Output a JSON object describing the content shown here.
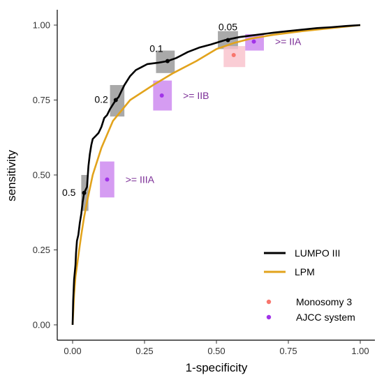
{
  "chart_data": {
    "type": "line",
    "xlabel": "1-specificity",
    "ylabel": "sensitivity",
    "xlim": [
      0,
      1
    ],
    "ylim": [
      0,
      1
    ],
    "x_ticks": [
      "0.00",
      "0.25",
      "0.50",
      "0.75",
      "1.00"
    ],
    "y_ticks": [
      "0.00",
      "0.25",
      "0.50",
      "0.75",
      "1.00"
    ],
    "grid": false,
    "legend_position": "bottom-right",
    "series": [
      {
        "name": "LUMPO III",
        "color": "#000000",
        "points": [
          [
            0,
            0
          ],
          [
            0.002,
            0.08
          ],
          [
            0.005,
            0.15
          ],
          [
            0.01,
            0.2
          ],
          [
            0.012,
            0.24
          ],
          [
            0.015,
            0.28
          ],
          [
            0.02,
            0.3
          ],
          [
            0.025,
            0.34
          ],
          [
            0.03,
            0.37
          ],
          [
            0.035,
            0.41
          ],
          [
            0.04,
            0.44
          ],
          [
            0.05,
            0.46
          ],
          [
            0.055,
            0.53
          ],
          [
            0.06,
            0.57
          ],
          [
            0.065,
            0.6
          ],
          [
            0.07,
            0.62
          ],
          [
            0.08,
            0.63
          ],
          [
            0.09,
            0.64
          ],
          [
            0.1,
            0.66
          ],
          [
            0.11,
            0.69
          ],
          [
            0.12,
            0.7
          ],
          [
            0.13,
            0.72
          ],
          [
            0.15,
            0.75
          ],
          [
            0.16,
            0.76
          ],
          [
            0.17,
            0.78
          ],
          [
            0.18,
            0.8
          ],
          [
            0.2,
            0.83
          ],
          [
            0.22,
            0.85
          ],
          [
            0.24,
            0.86
          ],
          [
            0.26,
            0.87
          ],
          [
            0.3,
            0.875
          ],
          [
            0.33,
            0.88
          ],
          [
            0.36,
            0.89
          ],
          [
            0.38,
            0.9
          ],
          [
            0.4,
            0.91
          ],
          [
            0.44,
            0.925
          ],
          [
            0.48,
            0.935
          ],
          [
            0.53,
            0.95
          ],
          [
            0.58,
            0.96
          ],
          [
            0.62,
            0.965
          ],
          [
            0.66,
            0.97
          ],
          [
            0.7,
            0.975
          ],
          [
            0.75,
            0.98
          ],
          [
            0.8,
            0.985
          ],
          [
            0.85,
            0.99
          ],
          [
            0.9,
            0.993
          ],
          [
            0.95,
            0.997
          ],
          [
            1.0,
            1.0
          ]
        ]
      },
      {
        "name": "LPM",
        "color": "#E2A31C",
        "points": [
          [
            0,
            0
          ],
          [
            0.005,
            0.1
          ],
          [
            0.01,
            0.16
          ],
          [
            0.02,
            0.23
          ],
          [
            0.03,
            0.3
          ],
          [
            0.04,
            0.36
          ],
          [
            0.05,
            0.41
          ],
          [
            0.07,
            0.5
          ],
          [
            0.1,
            0.59
          ],
          [
            0.14,
            0.68
          ],
          [
            0.2,
            0.75
          ],
          [
            0.28,
            0.8
          ],
          [
            0.35,
            0.84
          ],
          [
            0.43,
            0.88
          ],
          [
            0.5,
            0.92
          ],
          [
            0.56,
            0.94
          ],
          [
            0.62,
            0.955
          ],
          [
            0.7,
            0.968
          ],
          [
            0.8,
            0.98
          ],
          [
            0.9,
            0.99
          ],
          [
            1.0,
            1.0
          ]
        ]
      }
    ],
    "thresholds": [
      {
        "label": "0.5",
        "x": 0.04,
        "y": 0.44,
        "x_err": [
          0.03,
          0.055
        ],
        "y_err": [
          0.38,
          0.5
        ]
      },
      {
        "label": "0.2",
        "x": 0.15,
        "y": 0.75,
        "x_err": [
          0.13,
          0.18
        ],
        "y_err": [
          0.695,
          0.8
        ]
      },
      {
        "label": "0.1",
        "x": 0.33,
        "y": 0.88,
        "x_err": [
          0.29,
          0.355
        ],
        "y_err": [
          0.84,
          0.915
        ]
      },
      {
        "label": "0.05",
        "x": 0.54,
        "y": 0.95,
        "x_err": [
          0.505,
          0.575
        ],
        "y_err": [
          0.92,
          0.98
        ]
      }
    ],
    "points": [
      {
        "group": "Monosomy 3",
        "x": 0.56,
        "y": 0.9,
        "x_err": [
          0.525,
          0.6
        ],
        "y_err": [
          0.86,
          0.93
        ]
      },
      {
        "group": "AJCC system",
        "label": ">= IIIA",
        "x": 0.12,
        "y": 0.485,
        "x_err": [
          0.095,
          0.145
        ],
        "y_err": [
          0.425,
          0.545
        ]
      },
      {
        "group": "AJCC system",
        "label": ">= IIB",
        "x": 0.31,
        "y": 0.765,
        "x_err": [
          0.28,
          0.345
        ],
        "y_err": [
          0.715,
          0.815
        ]
      },
      {
        "group": "AJCC system",
        "label": ">= IIA",
        "x": 0.63,
        "y": 0.945,
        "x_err": [
          0.6,
          0.665
        ],
        "y_err": [
          0.915,
          0.97
        ]
      }
    ],
    "point_legend": [
      {
        "name": "Monosomy 3",
        "color": "#F8766D"
      },
      {
        "name": "AJCC system",
        "color": "#A133E8"
      }
    ],
    "colors": {
      "threshold_box": "#8c8c8c",
      "monosomy_box": "#F9C0CB",
      "ajcc_box": "#C77BEE",
      "ajcc_label": "#7B2D96"
    }
  }
}
